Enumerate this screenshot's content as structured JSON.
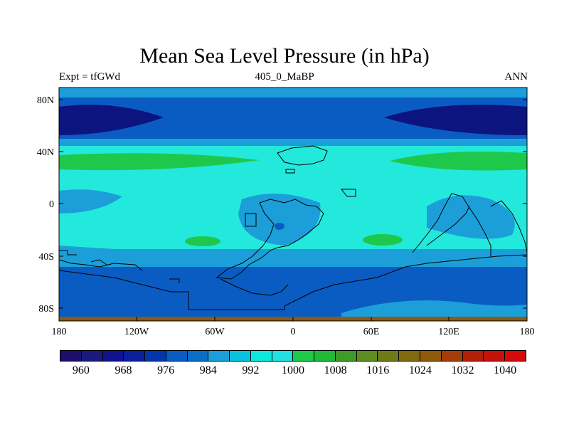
{
  "title": "Mean Sea Level Pressure (in hPa)",
  "subtitle_left": "Expt = tfGWd",
  "subtitle_center": "405_0_MaBP",
  "subtitle_right": "ANN",
  "lat_ticks": [
    "80N",
    "40N",
    "0",
    "40S",
    "80S"
  ],
  "lon_ticks": [
    "180",
    "120W",
    "60W",
    "0",
    "60E",
    "120E",
    "180"
  ],
  "colorbar": {
    "labels": [
      "960",
      "968",
      "976",
      "984",
      "992",
      "1000",
      "1008",
      "1016",
      "1024",
      "1032",
      "1040"
    ],
    "colors": [
      "#1b0f6b",
      "#1a1a7d",
      "#11128e",
      "#0a1f9c",
      "#0535ad",
      "#0a5cc2",
      "#0a6fc4",
      "#1c9fd9",
      "#09c3de",
      "#0ee8dc",
      "#23e0e0",
      "#1ec84a",
      "#22b83a",
      "#3f9a2a",
      "#5f8c1e",
      "#6e7a17",
      "#7f6a0f",
      "#8f5a0a",
      "#a33d0a",
      "#b2200a",
      "#c4120a",
      "#d60a0a"
    ]
  },
  "regions": {
    "low_pressure": "#0c1480",
    "mid_low": "#0a5cc2",
    "mid": "#1c9fd9",
    "high": "#23e8dc",
    "high_green": "#1ec84a",
    "ground": "#8a5a18"
  }
}
